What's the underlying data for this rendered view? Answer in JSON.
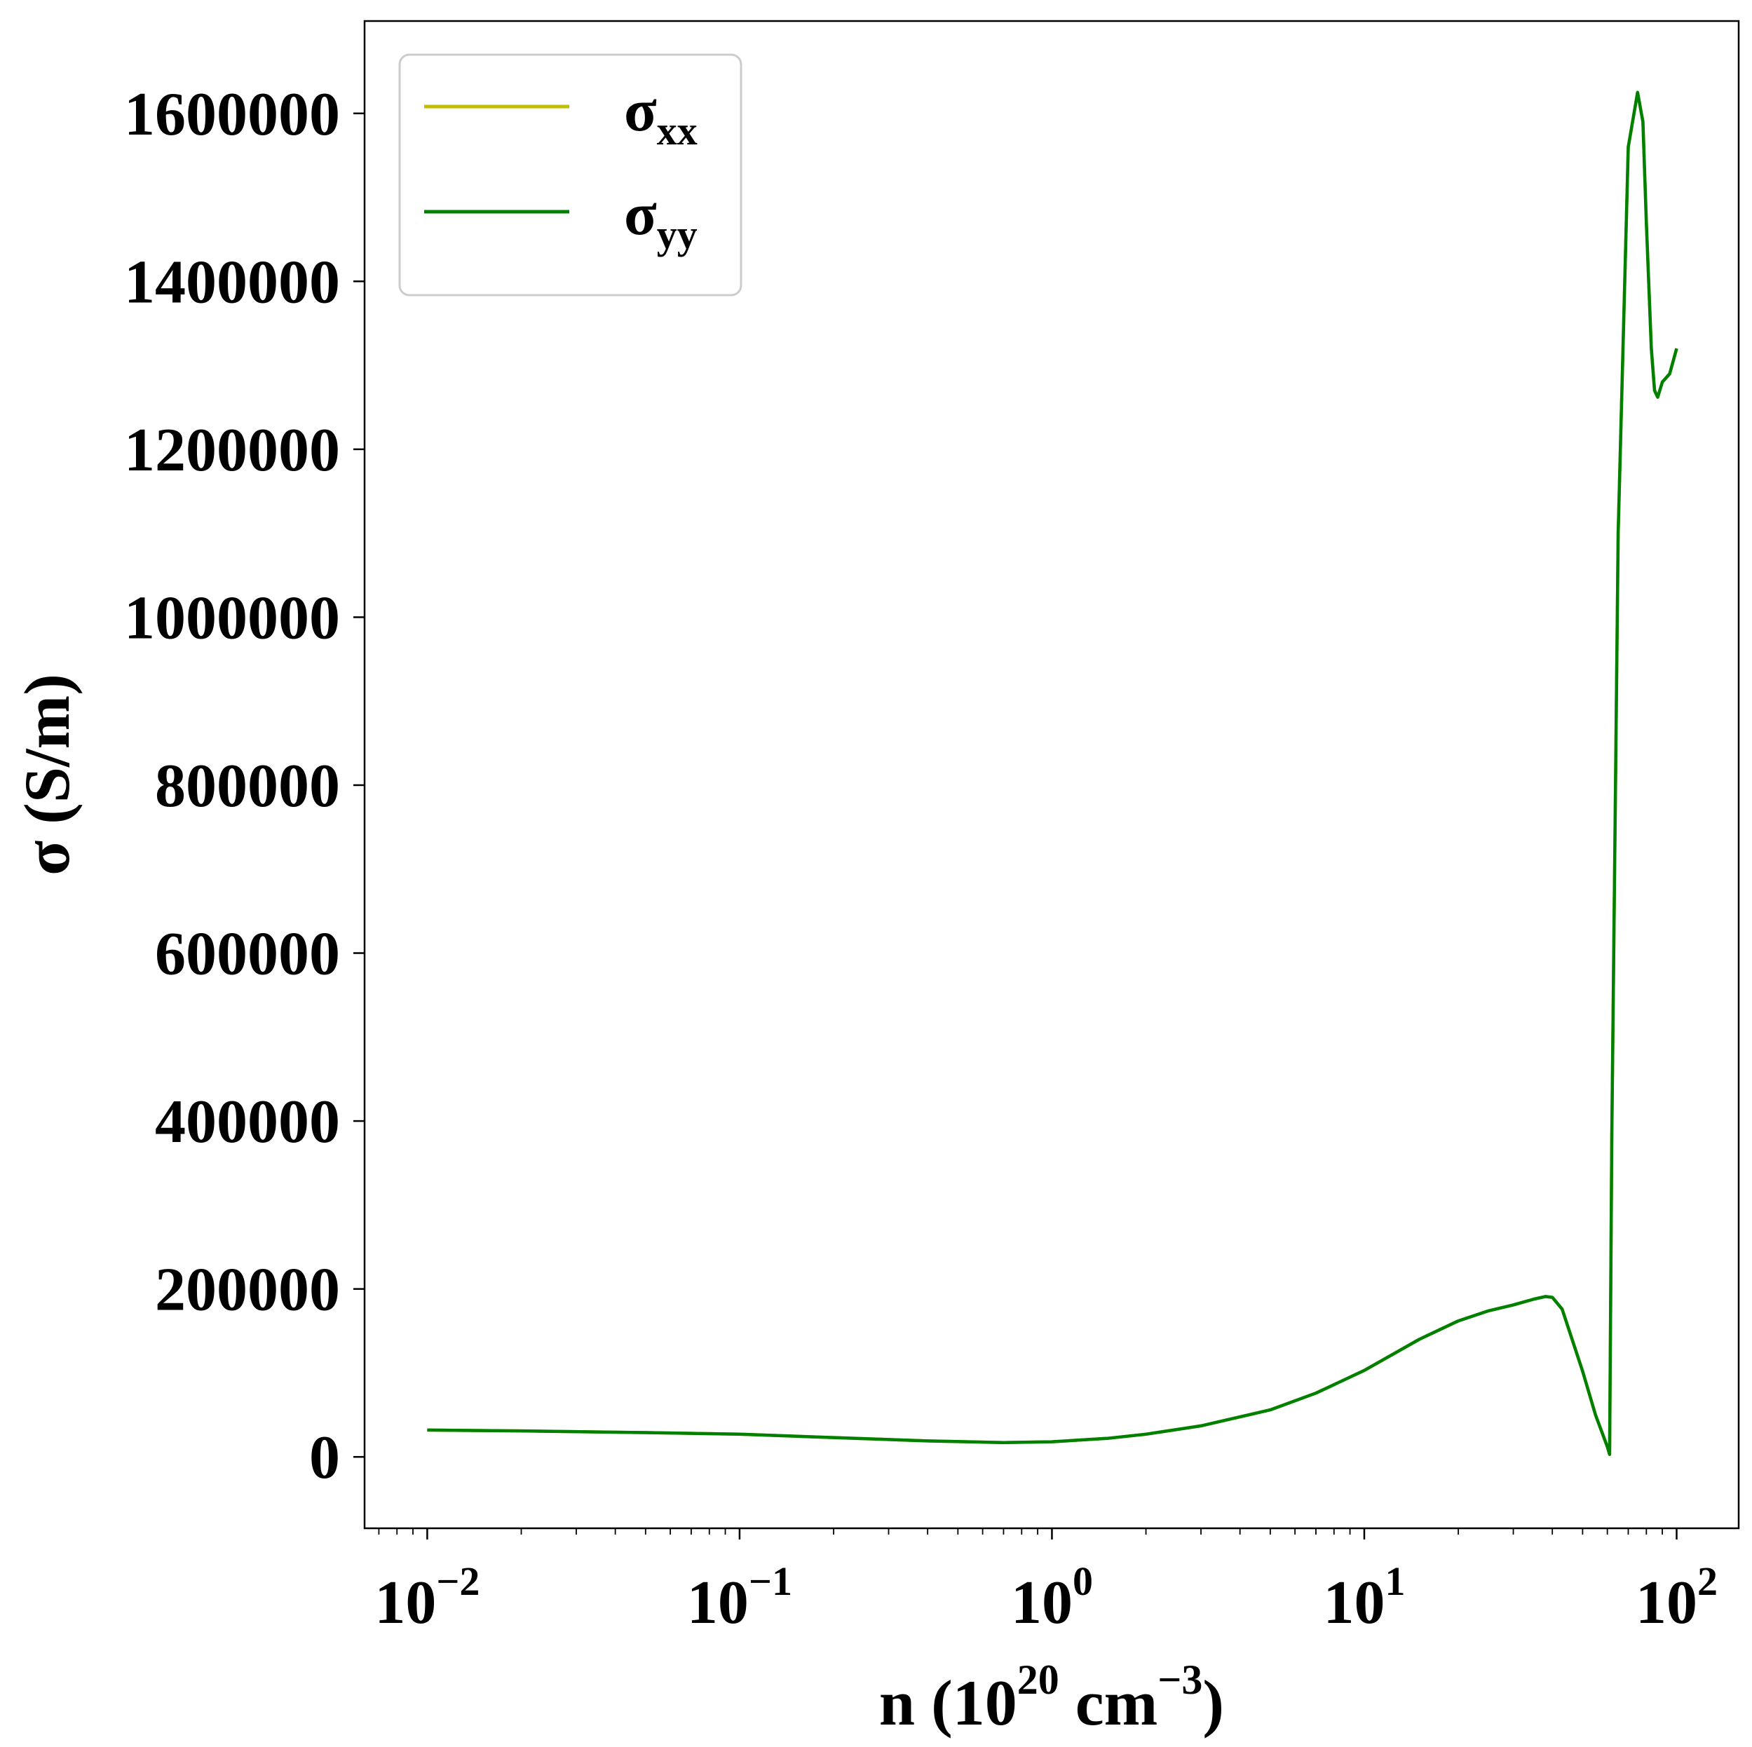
{
  "chart_data": {
    "type": "line",
    "xscale": "log",
    "xlim": [
      0.0063,
      158
    ],
    "ylim": [
      -85000,
      1710000
    ],
    "grid": false,
    "legend_placement": "top-left",
    "title": "",
    "xlabel": {
      "base": "n (10",
      "exp1": "20",
      "mid": " cm",
      "exp2": "−3",
      "end": ")"
    },
    "ylabel": "σ (S/m)",
    "x_ticks": [
      {
        "value": 0.01,
        "base": "10",
        "exp": "−2"
      },
      {
        "value": 0.1,
        "base": "10",
        "exp": "−1"
      },
      {
        "value": 1,
        "base": "10",
        "exp": "0"
      },
      {
        "value": 10,
        "base": "10",
        "exp": "1"
      },
      {
        "value": 100,
        "base": "10",
        "exp": "2"
      }
    ],
    "y_ticks": [
      {
        "value": 0,
        "label": "0"
      },
      {
        "value": 200000,
        "label": "200000"
      },
      {
        "value": 400000,
        "label": "400000"
      },
      {
        "value": 600000,
        "label": "600000"
      },
      {
        "value": 800000,
        "label": "800000"
      },
      {
        "value": 1000000,
        "label": "1000000"
      },
      {
        "value": 1200000,
        "label": "1200000"
      },
      {
        "value": 1400000,
        "label": "1400000"
      },
      {
        "value": 1600000,
        "label": "1600000"
      }
    ],
    "series": [
      {
        "name": "σ",
        "name_sub": "xx",
        "color": "#bfbf00",
        "x": [
          0.01,
          0.02,
          0.05,
          0.1,
          0.2,
          0.4,
          0.7,
          1,
          1.5,
          2,
          3,
          5,
          7,
          10,
          15,
          20,
          25,
          30,
          35,
          38,
          40,
          43,
          50,
          55,
          60,
          61,
          62,
          65,
          70,
          75,
          78,
          80,
          83,
          85,
          87,
          90,
          95,
          100
        ],
        "y": [
          32000,
          31000,
          29000,
          27000,
          23000,
          19000,
          17000,
          18000,
          22000,
          27000,
          37000,
          56000,
          76000,
          103000,
          140000,
          162000,
          174000,
          181000,
          188000,
          191000,
          190000,
          176000,
          102000,
          50000,
          12000,
          3000,
          380000,
          1100000,
          1560000,
          1625000,
          1590000,
          1470000,
          1320000,
          1270000,
          1262000,
          1280000,
          1290000,
          1320000
        ]
      },
      {
        "name": "σ",
        "name_sub": "yy",
        "color": "#008000",
        "x": [
          0.01,
          0.02,
          0.05,
          0.1,
          0.2,
          0.4,
          0.7,
          1,
          1.5,
          2,
          3,
          5,
          7,
          10,
          15,
          20,
          25,
          30,
          35,
          38,
          40,
          43,
          50,
          55,
          60,
          61,
          62,
          65,
          70,
          75,
          78,
          80,
          83,
          85,
          87,
          90,
          95,
          100
        ],
        "y": [
          32000,
          31000,
          29000,
          27000,
          23000,
          19000,
          17000,
          18000,
          22000,
          27000,
          37000,
          56000,
          76000,
          103000,
          140000,
          162000,
          174000,
          181000,
          188000,
          191000,
          190000,
          176000,
          102000,
          50000,
          12000,
          3000,
          380000,
          1100000,
          1560000,
          1625000,
          1590000,
          1470000,
          1320000,
          1270000,
          1262000,
          1280000,
          1290000,
          1320000
        ]
      }
    ]
  }
}
